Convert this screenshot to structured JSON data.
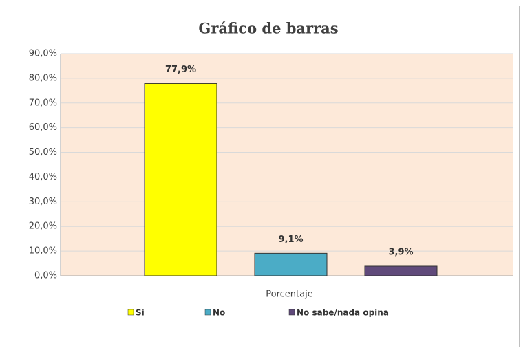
{
  "chart_data": {
    "type": "bar",
    "title": "Gráfico de barras",
    "categories": [
      "Porcentaje"
    ],
    "series": [
      {
        "name": "Si",
        "color": "#ffff00",
        "values": [
          77.9
        ],
        "value_labels": [
          "77,9%"
        ]
      },
      {
        "name": "No",
        "color": "#4bacc6",
        "values": [
          9.1
        ],
        "value_labels": [
          "9,1%"
        ]
      },
      {
        "name": "No sabe/nada opina",
        "color": "#604a7b",
        "values": [
          3.9
        ],
        "value_labels": [
          "3,9%"
        ]
      }
    ],
    "ylim": [
      0,
      90
    ],
    "yticks": [
      {
        "value": 0,
        "label": "0,0%"
      },
      {
        "value": 10,
        "label": "10,0%"
      },
      {
        "value": 20,
        "label": "20,0%"
      },
      {
        "value": 30,
        "label": "30,0%"
      },
      {
        "value": 40,
        "label": "40,0%"
      },
      {
        "value": 50,
        "label": "50,0%"
      },
      {
        "value": 60,
        "label": "60,0%"
      },
      {
        "value": 70,
        "label": "70,0%"
      },
      {
        "value": 80,
        "label": "80,0%"
      },
      {
        "value": 90,
        "label": "90,0%"
      }
    ],
    "grid": true,
    "legend": "bottom"
  }
}
